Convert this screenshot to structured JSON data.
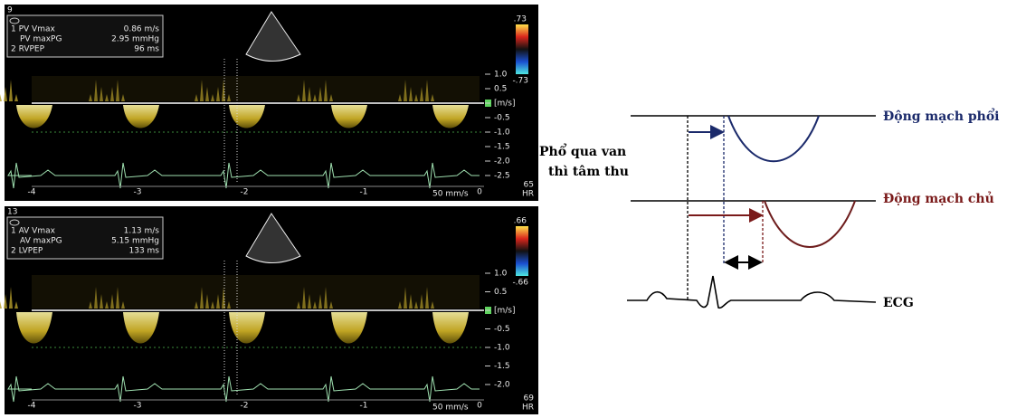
{
  "ultrasound_panels": [
    {
      "frame": "9",
      "measurements": [
        {
          "label": "1 PV Vmax",
          "value": "0.86 m/s"
        },
        {
          "label": "PV maxPG",
          "value": "2.95 mmHg"
        },
        {
          "label": "2 RVPEP",
          "value": "96 ms"
        }
      ],
      "color_scale": {
        "top": ".73",
        "bottom": "-.73"
      },
      "velocity_scale": [
        "1.0",
        "0.5",
        "[m/s]",
        "-0.5",
        "-1.0",
        "-1.5",
        "-2.0",
        "-2.5"
      ],
      "time_axis": [
        "-4",
        "-3",
        "-2",
        "-1",
        "0"
      ],
      "sweep": "50 mm/s",
      "heart_rate": "65",
      "heart_rate_unit": "HR"
    },
    {
      "frame": "13",
      "measurements": [
        {
          "label": "1 AV Vmax",
          "value": "1.13 m/s"
        },
        {
          "label": "AV maxPG",
          "value": "5.15 mmHg"
        },
        {
          "label": "2 LVPEP",
          "value": "133 ms"
        }
      ],
      "color_scale": {
        "top": ".66",
        "bottom": "-.66"
      },
      "velocity_scale": [
        "1.0",
        "0.5",
        "[m/s]",
        "-0.5",
        "-1.0",
        "-1.5",
        "-2.0"
      ],
      "time_axis": [
        "-4",
        "-3",
        "-2",
        "-1",
        "0"
      ],
      "sweep": "50 mm/s",
      "heart_rate": "69",
      "heart_rate_unit": "HR"
    }
  ],
  "diagram": {
    "pulmonary_label": "Động mạch phổi",
    "aortic_label": "Động mạch chủ",
    "caption_line1": "Phổ qua van",
    "caption_line2": "thì tâm thu",
    "ecg_label": "ECG"
  }
}
